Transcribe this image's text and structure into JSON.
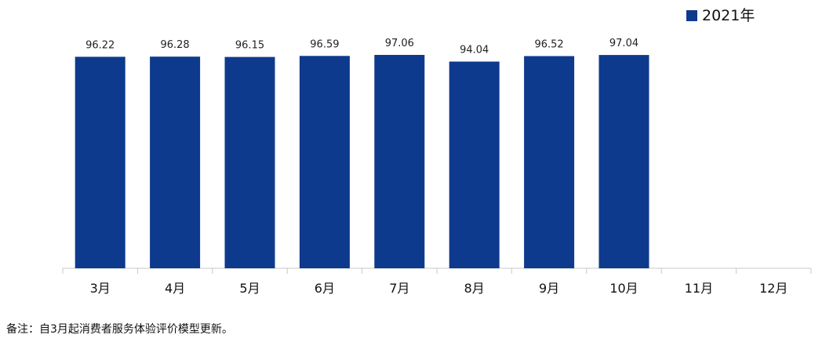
{
  "chart_data": {
    "type": "bar",
    "categories": [
      "3月",
      "4月",
      "5月",
      "6月",
      "7月",
      "8月",
      "9月",
      "10月",
      "11月",
      "12月"
    ],
    "series": [
      {
        "name": "2021年",
        "values": [
          96.22,
          96.28,
          96.15,
          96.59,
          97.06,
          94.04,
          96.52,
          97.04,
          null,
          null
        ],
        "color": "#0d3a8c"
      }
    ],
    "value_labels": [
      "96.22",
      "96.28",
      "96.15",
      "96.59",
      "97.06",
      "94.04",
      "96.52",
      "97.04",
      "",
      ""
    ],
    "title": "",
    "xlabel": "",
    "ylabel": "",
    "ylim": [
      0,
      100
    ],
    "grid": false,
    "legend": "top-right"
  },
  "legend": {
    "label": "2021年"
  },
  "footnote": "备注：自3月起消费者服务体验评价模型更新。"
}
